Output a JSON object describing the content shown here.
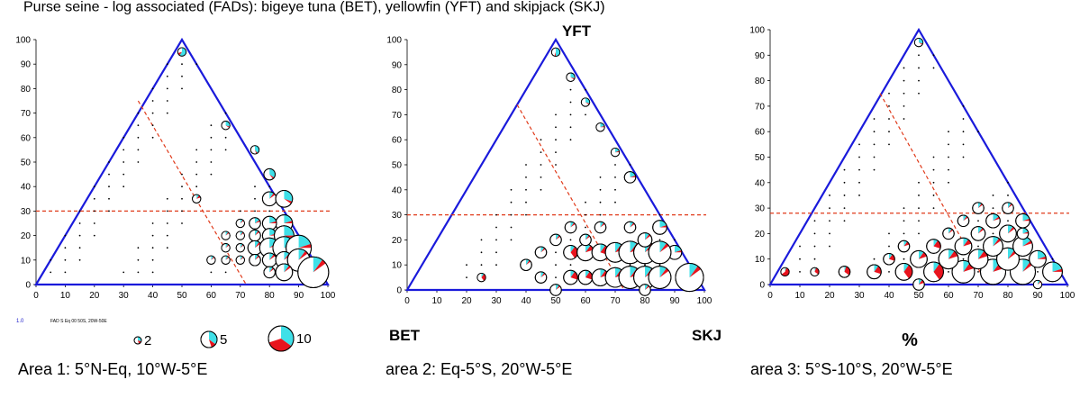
{
  "header_text": "Purse seine - log associated (FADs): bigeye tuna (BET), yellowfin (YFT) and skipjack (SKJ)",
  "corner_labels": {
    "top": "YFT",
    "left": "BET",
    "right": "SKJ",
    "units": "%"
  },
  "legend": {
    "index_text": "1.0",
    "source_text": "FAD S Eq 00 50S, 20W-50E",
    "sizes": [
      2,
      5,
      10
    ]
  },
  "colors": {
    "frame": "#1a1adb",
    "threshold": "#e03a1a",
    "bet_slice": "#e8141e",
    "yft_slice": "#3fe0e8",
    "skj_slice": "#ffffff"
  },
  "chart_data": [
    {
      "type": "ternary-bubble",
      "title": "Area 1: 5°N-Eq, 10°W-5°E",
      "xlabel": "",
      "ylabel": "",
      "xlim": [
        0,
        100
      ],
      "ylim": [
        0,
        100
      ],
      "xticks": [
        0,
        10,
        20,
        30,
        40,
        50,
        60,
        70,
        80,
        90,
        100
      ],
      "yticks": [
        0,
        10,
        20,
        30,
        40,
        50,
        60,
        70,
        80,
        90,
        100
      ],
      "thresholds": {
        "yft_pct": 30,
        "line": [
          [
            35,
            75
          ],
          [
            72,
            0
          ]
        ]
      },
      "points": [
        {
          "x": 50,
          "y": 95,
          "size": 2,
          "bet": 0.1,
          "yft": 0.6
        },
        {
          "x": 55,
          "y": 35,
          "size": 2,
          "bet": 0.1,
          "yft": 0.1
        },
        {
          "x": 65,
          "y": 65,
          "size": 2,
          "bet": 0.05,
          "yft": 0.3
        },
        {
          "x": 75,
          "y": 55,
          "size": 2,
          "bet": 0.05,
          "yft": 0.4
        },
        {
          "x": 80,
          "y": 45,
          "size": 3,
          "bet": 0.05,
          "yft": 0.35
        },
        {
          "x": 80,
          "y": 35,
          "size": 4,
          "bet": 0.05,
          "yft": 0.1
        },
        {
          "x": 85,
          "y": 35,
          "size": 5,
          "bet": 0.05,
          "yft": 0.3
        },
        {
          "x": 85,
          "y": 25,
          "size": 5,
          "bet": 0.05,
          "yft": 0.2
        },
        {
          "x": 75,
          "y": 25,
          "size": 3,
          "bet": 0.05,
          "yft": 0.15
        },
        {
          "x": 80,
          "y": 25,
          "size": 4,
          "bet": 0.05,
          "yft": 0.2
        },
        {
          "x": 75,
          "y": 20,
          "size": 3,
          "bet": 0.05,
          "yft": 0.1
        },
        {
          "x": 80,
          "y": 20,
          "size": 4,
          "bet": 0.05,
          "yft": 0.2
        },
        {
          "x": 85,
          "y": 20,
          "size": 6,
          "bet": 0.05,
          "yft": 0.25
        },
        {
          "x": 75,
          "y": 15,
          "size": 4,
          "bet": 0.05,
          "yft": 0.1
        },
        {
          "x": 80,
          "y": 15,
          "size": 6,
          "bet": 0.05,
          "yft": 0.15
        },
        {
          "x": 85,
          "y": 15,
          "size": 7,
          "bet": 0.05,
          "yft": 0.2
        },
        {
          "x": 90,
          "y": 15,
          "size": 8,
          "bet": 0.05,
          "yft": 0.2
        },
        {
          "x": 75,
          "y": 10,
          "size": 3,
          "bet": 0.05,
          "yft": 0.1
        },
        {
          "x": 80,
          "y": 10,
          "size": 4,
          "bet": 0.05,
          "yft": 0.1
        },
        {
          "x": 85,
          "y": 10,
          "size": 5,
          "bet": 0.05,
          "yft": 0.1
        },
        {
          "x": 90,
          "y": 10,
          "size": 7,
          "bet": 0.05,
          "yft": 0.1
        },
        {
          "x": 70,
          "y": 15,
          "size": 2,
          "bet": 0.05,
          "yft": 0.1
        },
        {
          "x": 70,
          "y": 10,
          "size": 2,
          "bet": 0.05,
          "yft": 0.1
        },
        {
          "x": 65,
          "y": 10,
          "size": 2,
          "bet": 0.05,
          "yft": 0.1
        },
        {
          "x": 65,
          "y": 15,
          "size": 2,
          "bet": 0.05,
          "yft": 0.1
        },
        {
          "x": 65,
          "y": 20,
          "size": 2,
          "bet": 0.05,
          "yft": 0.1
        },
        {
          "x": 70,
          "y": 20,
          "size": 2,
          "bet": 0.05,
          "yft": 0.1
        },
        {
          "x": 70,
          "y": 25,
          "size": 2,
          "bet": 0.05,
          "yft": 0.1
        },
        {
          "x": 60,
          "y": 10,
          "size": 2,
          "bet": 0.05,
          "yft": 0.1
        },
        {
          "x": 80,
          "y": 5,
          "size": 3,
          "bet": 0.05,
          "yft": 0.1
        },
        {
          "x": 85,
          "y": 5,
          "size": 5,
          "bet": 0.05,
          "yft": 0.1
        },
        {
          "x": 95,
          "y": 5,
          "size": 10,
          "bet": 0.05,
          "yft": 0.1
        }
      ]
    },
    {
      "type": "ternary-bubble",
      "title": "area 2:  Eq-5°S,  20°W-5°E",
      "xlabel": "",
      "ylabel": "",
      "xlim": [
        0,
        100
      ],
      "ylim": [
        0,
        100
      ],
      "xticks": [
        0,
        10,
        20,
        30,
        40,
        50,
        60,
        70,
        80,
        90,
        100
      ],
      "yticks": [
        0,
        10,
        20,
        30,
        40,
        50,
        60,
        70,
        80,
        90,
        100
      ],
      "thresholds": {
        "yft_pct": 30,
        "line": [
          [
            37,
            74
          ],
          [
            73,
            0
          ]
        ]
      },
      "points": [
        {
          "x": 50,
          "y": 95,
          "size": 2,
          "bet": 0.05,
          "yft": 0.5
        },
        {
          "x": 55,
          "y": 85,
          "size": 2,
          "bet": 0.05,
          "yft": 0.3
        },
        {
          "x": 60,
          "y": 75,
          "size": 2,
          "bet": 0.05,
          "yft": 0.3
        },
        {
          "x": 65,
          "y": 65,
          "size": 2,
          "bet": 0.05,
          "yft": 0.2
        },
        {
          "x": 70,
          "y": 55,
          "size": 2,
          "bet": 0.05,
          "yft": 0.2
        },
        {
          "x": 75,
          "y": 45,
          "size": 3,
          "bet": 0.05,
          "yft": 0.2
        },
        {
          "x": 85,
          "y": 25,
          "size": 4,
          "bet": 0.05,
          "yft": 0.2
        },
        {
          "x": 90,
          "y": 15,
          "size": 4,
          "bet": 0.05,
          "yft": 0.2
        },
        {
          "x": 50,
          "y": 20,
          "size": 3,
          "bet": 0.05,
          "yft": 0.1
        },
        {
          "x": 55,
          "y": 15,
          "size": 4,
          "bet": 0.3,
          "yft": 0.1
        },
        {
          "x": 60,
          "y": 15,
          "size": 5,
          "bet": 0.1,
          "yft": 0.1
        },
        {
          "x": 65,
          "y": 15,
          "size": 5,
          "bet": 0.2,
          "yft": 0.1
        },
        {
          "x": 70,
          "y": 15,
          "size": 6,
          "bet": 0.1,
          "yft": 0.1
        },
        {
          "x": 75,
          "y": 15,
          "size": 7,
          "bet": 0.1,
          "yft": 0.1
        },
        {
          "x": 80,
          "y": 15,
          "size": 7,
          "bet": 0.05,
          "yft": 0.1
        },
        {
          "x": 85,
          "y": 15,
          "size": 7,
          "bet": 0.05,
          "yft": 0.1
        },
        {
          "x": 55,
          "y": 5,
          "size": 4,
          "bet": 0.2,
          "yft": 0.1
        },
        {
          "x": 60,
          "y": 5,
          "size": 4,
          "bet": 0.2,
          "yft": 0.1
        },
        {
          "x": 65,
          "y": 5,
          "size": 5,
          "bet": 0.1,
          "yft": 0.1
        },
        {
          "x": 70,
          "y": 5,
          "size": 6,
          "bet": 0.1,
          "yft": 0.1
        },
        {
          "x": 75,
          "y": 5,
          "size": 7,
          "bet": 0.1,
          "yft": 0.1
        },
        {
          "x": 80,
          "y": 5,
          "size": 7,
          "bet": 0.05,
          "yft": 0.1
        },
        {
          "x": 85,
          "y": 5,
          "size": 7,
          "bet": 0.05,
          "yft": 0.1
        },
        {
          "x": 95,
          "y": 5,
          "size": 9,
          "bet": 0.05,
          "yft": 0.1
        },
        {
          "x": 50,
          "y": 0,
          "size": 3,
          "bet": 0.05,
          "yft": 0.1
        },
        {
          "x": 80,
          "y": 0,
          "size": 3,
          "bet": 0.05,
          "yft": 0.1
        },
        {
          "x": 45,
          "y": 5,
          "size": 3,
          "bet": 0.05,
          "yft": 0.1
        },
        {
          "x": 40,
          "y": 10,
          "size": 3,
          "bet": 0.05,
          "yft": 0.1
        },
        {
          "x": 45,
          "y": 15,
          "size": 3,
          "bet": 0.05,
          "yft": 0.1
        },
        {
          "x": 60,
          "y": 20,
          "size": 3,
          "bet": 0.05,
          "yft": 0.1
        },
        {
          "x": 65,
          "y": 25,
          "size": 3,
          "bet": 0.05,
          "yft": 0.1
        },
        {
          "x": 75,
          "y": 25,
          "size": 3,
          "bet": 0.05,
          "yft": 0.1
        },
        {
          "x": 80,
          "y": 20,
          "size": 4,
          "bet": 0.05,
          "yft": 0.1
        },
        {
          "x": 55,
          "y": 25,
          "size": 3,
          "bet": 0.05,
          "yft": 0.1
        },
        {
          "x": 25,
          "y": 5,
          "size": 2,
          "bet": 0.3,
          "yft": 0.1
        }
      ]
    },
    {
      "type": "ternary-bubble",
      "title": "area 3:  5°S-10°S, 20°W-5°E",
      "xlabel": "",
      "ylabel": "",
      "xlim": [
        0,
        100
      ],
      "ylim": [
        0,
        100
      ],
      "xticks": [
        0,
        10,
        20,
        30,
        40,
        50,
        60,
        70,
        80,
        90,
        100
      ],
      "yticks": [
        0,
        10,
        20,
        30,
        40,
        50,
        60,
        70,
        80,
        90,
        100
      ],
      "thresholds": {
        "yft_pct": 28,
        "line": [
          [
            37,
            75
          ],
          [
            73,
            0
          ]
        ]
      },
      "points": [
        {
          "x": 50,
          "y": 95,
          "size": 2,
          "bet": 0.05,
          "yft": 0.3
        },
        {
          "x": 5,
          "y": 5,
          "size": 2,
          "bet": 0.6,
          "yft": 0.05
        },
        {
          "x": 15,
          "y": 5,
          "size": 2,
          "bet": 0.3,
          "yft": 0.05
        },
        {
          "x": 25,
          "y": 5,
          "size": 3,
          "bet": 0.3,
          "yft": 0.05
        },
        {
          "x": 35,
          "y": 5,
          "size": 4,
          "bet": 0.2,
          "yft": 0.1
        },
        {
          "x": 45,
          "y": 5,
          "size": 5,
          "bet": 0.3,
          "yft": 0.1
        },
        {
          "x": 55,
          "y": 5,
          "size": 6,
          "bet": 0.3,
          "yft": 0.1
        },
        {
          "x": 65,
          "y": 5,
          "size": 7,
          "bet": 0.1,
          "yft": 0.1
        },
        {
          "x": 75,
          "y": 5,
          "size": 8,
          "bet": 0.1,
          "yft": 0.1
        },
        {
          "x": 85,
          "y": 5,
          "size": 8,
          "bet": 0.05,
          "yft": 0.1
        },
        {
          "x": 95,
          "y": 5,
          "size": 6,
          "bet": 0.05,
          "yft": 0.2
        },
        {
          "x": 40,
          "y": 10,
          "size": 3,
          "bet": 0.2,
          "yft": 0.1
        },
        {
          "x": 50,
          "y": 10,
          "size": 5,
          "bet": 0.1,
          "yft": 0.1
        },
        {
          "x": 60,
          "y": 10,
          "size": 6,
          "bet": 0.1,
          "yft": 0.1
        },
        {
          "x": 70,
          "y": 10,
          "size": 6,
          "bet": 0.1,
          "yft": 0.1
        },
        {
          "x": 80,
          "y": 10,
          "size": 7,
          "bet": 0.05,
          "yft": 0.1
        },
        {
          "x": 90,
          "y": 10,
          "size": 5,
          "bet": 0.05,
          "yft": 0.2
        },
        {
          "x": 45,
          "y": 15,
          "size": 3,
          "bet": 0.1,
          "yft": 0.1
        },
        {
          "x": 55,
          "y": 15,
          "size": 4,
          "bet": 0.2,
          "yft": 0.1
        },
        {
          "x": 65,
          "y": 15,
          "size": 5,
          "bet": 0.1,
          "yft": 0.1
        },
        {
          "x": 75,
          "y": 15,
          "size": 6,
          "bet": 0.05,
          "yft": 0.1
        },
        {
          "x": 85,
          "y": 15,
          "size": 6,
          "bet": 0.05,
          "yft": 0.15
        },
        {
          "x": 60,
          "y": 20,
          "size": 3,
          "bet": 0.05,
          "yft": 0.1
        },
        {
          "x": 70,
          "y": 20,
          "size": 4,
          "bet": 0.05,
          "yft": 0.1
        },
        {
          "x": 80,
          "y": 20,
          "size": 5,
          "bet": 0.05,
          "yft": 0.1
        },
        {
          "x": 65,
          "y": 25,
          "size": 3,
          "bet": 0.05,
          "yft": 0.1
        },
        {
          "x": 75,
          "y": 25,
          "size": 4,
          "bet": 0.05,
          "yft": 0.15
        },
        {
          "x": 85,
          "y": 25,
          "size": 4,
          "bet": 0.05,
          "yft": 0.2
        },
        {
          "x": 70,
          "y": 30,
          "size": 3,
          "bet": 0.05,
          "yft": 0.1
        },
        {
          "x": 80,
          "y": 30,
          "size": 3,
          "bet": 0.05,
          "yft": 0.1
        },
        {
          "x": 50,
          "y": 0,
          "size": 3,
          "bet": 0.1,
          "yft": 0.1
        },
        {
          "x": 90,
          "y": 0,
          "size": 2,
          "bet": 0.05,
          "yft": 0.1
        },
        {
          "x": 85,
          "y": 20,
          "size": 3,
          "bet": 0.05,
          "yft": 0.2
        }
      ]
    }
  ]
}
